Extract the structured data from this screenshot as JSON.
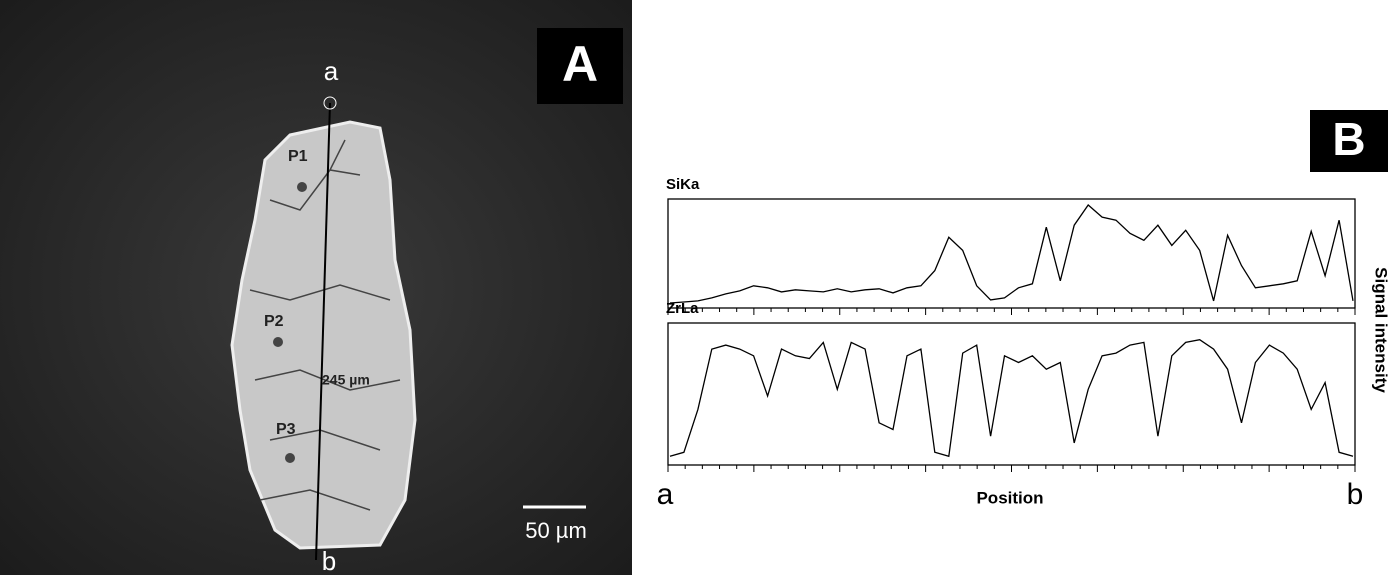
{
  "panel_a": {
    "label": "A",
    "line_start": "a",
    "line_end": "b",
    "points": [
      "P1",
      "P2",
      "P3"
    ],
    "line_length": "245 µm",
    "scale_bar": "50 µm"
  },
  "chart_data": {
    "type": "line",
    "panel_label": "B",
    "x_label": "Position",
    "x_start": "a",
    "x_end": "b",
    "y_label": "Signal intensity",
    "ylim": [
      0,
      100
    ],
    "color": "#000000",
    "series": [
      {
        "name": "SiKa",
        "values": [
          3,
          4,
          5,
          8,
          12,
          15,
          20,
          18,
          14,
          16,
          15,
          14,
          17,
          14,
          16,
          17,
          13,
          18,
          20,
          35,
          68,
          55,
          20,
          6,
          8,
          18,
          22,
          78,
          25,
          80,
          100,
          88,
          85,
          72,
          65,
          80,
          60,
          75,
          55,
          5,
          70,
          40,
          18,
          20,
          22,
          25,
          74,
          30,
          85,
          5
        ]
      },
      {
        "name": "ZrLa",
        "values": [
          5,
          8,
          40,
          85,
          88,
          85,
          80,
          50,
          85,
          80,
          78,
          90,
          55,
          90,
          85,
          30,
          25,
          80,
          85,
          8,
          5,
          82,
          88,
          20,
          80,
          75,
          80,
          70,
          75,
          15,
          55,
          80,
          82,
          88,
          90,
          20,
          80,
          90,
          92,
          85,
          70,
          30,
          75,
          88,
          82,
          70,
          40,
          60,
          8,
          5
        ]
      }
    ]
  }
}
